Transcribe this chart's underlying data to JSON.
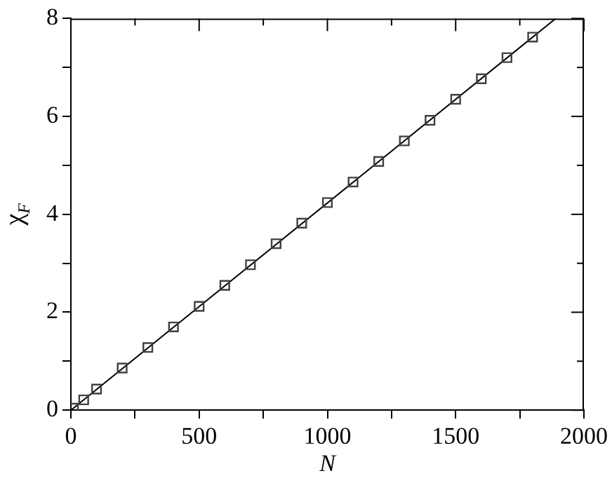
{
  "chart_data": {
    "type": "scatter",
    "xlabel": "N",
    "ylabel": "χ$_{F}$",
    "xlim": [
      0,
      2000
    ],
    "ylim": [
      0,
      8
    ],
    "xticks": [
      0,
      {
        "value": 250,
        "label": null
      },
      500,
      {
        "value": 750,
        "label": null
      },
      1000,
      {
        "value": 1250,
        "label": null
      },
      1500,
      {
        "value": 1750,
        "label": null
      },
      2000
    ],
    "yticks": [
      0,
      {
        "value": 1,
        "label": null
      },
      2,
      {
        "value": 3,
        "label": null
      },
      4,
      {
        "value": 5,
        "label": null
      },
      6,
      {
        "value": 7,
        "label": null
      },
      8
    ],
    "grid": false,
    "legend": false,
    "series": [
      {
        "marker": "square",
        "color": "#404040",
        "x": [
          10,
          50,
          100,
          200,
          300,
          400,
          500,
          600,
          700,
          800,
          900,
          1000,
          1100,
          1200,
          1300,
          1400,
          1500,
          1600,
          1700,
          1800
        ],
        "values": [
          0.04,
          0.21,
          0.43,
          0.86,
          1.28,
          1.7,
          2.12,
          2.55,
          2.97,
          3.4,
          3.82,
          4.24,
          4.66,
          5.08,
          5.5,
          5.92,
          6.35,
          6.77,
          7.2,
          7.62
        ]
      },
      {
        "type": "line",
        "marker": "none",
        "color": "#000000",
        "x": [
          0,
          1890
        ],
        "values": [
          0,
          8
        ]
      }
    ]
  }
}
